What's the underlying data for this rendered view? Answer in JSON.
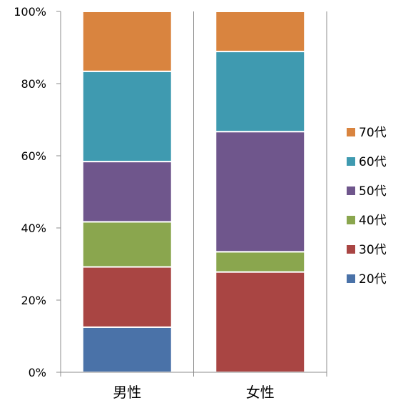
{
  "chart_data": {
    "type": "bar",
    "stacked": true,
    "percent": true,
    "categories": [
      "男性",
      "女性"
    ],
    "series": [
      {
        "name": "20代",
        "color": "#4A72A8",
        "values": [
          12.5,
          0
        ]
      },
      {
        "name": "30代",
        "color": "#A94543",
        "values": [
          16.7,
          27.8
        ]
      },
      {
        "name": "40代",
        "color": "#8AA64E",
        "values": [
          12.5,
          5.6
        ]
      },
      {
        "name": "50代",
        "color": "#6F568C",
        "values": [
          16.7,
          33.3
        ]
      },
      {
        "name": "60代",
        "color": "#3F9AB0",
        "values": [
          25.0,
          22.2
        ]
      },
      {
        "name": "70代",
        "color": "#D9843F",
        "values": [
          16.6,
          11.1
        ]
      }
    ],
    "y_ticks": [
      "0%",
      "20%",
      "40%",
      "60%",
      "80%",
      "100%"
    ],
    "ylim": [
      0,
      100
    ],
    "grid": "vertical lines at category boundaries",
    "legend_position": "right"
  }
}
